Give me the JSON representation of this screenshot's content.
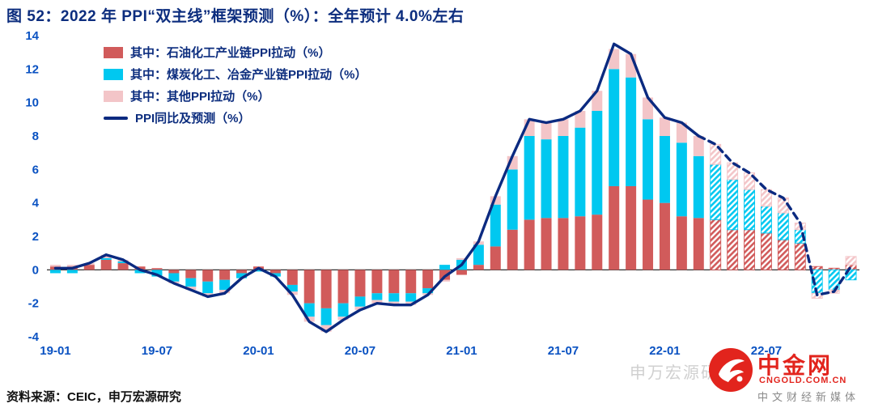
{
  "title": "图 52：2022 年 PPI“双主线”框架预测（%）：全年预计 4.0%左右",
  "source": "资料来源：CEIC，申万宏源研究",
  "watermark": {
    "faint": "申万宏源研究",
    "name": "中金网",
    "url": "CNGOLD.COM.CN",
    "tagline": "中文财经新媒体",
    "logo_color": "#e2241d"
  },
  "colors": {
    "title": "#0c2d7e",
    "axis_labels": "#0a52c2",
    "zero_line": "#1a1a1a",
    "background": "#ffffff"
  },
  "chart_data": {
    "type": "bar",
    "title": "2022 年 PPI“双主线”框架预测（%）：全年预计 4.0%左右",
    "xlabel": "",
    "ylabel": "",
    "ylim": [
      -4,
      14
    ],
    "yticks": [
      -4,
      -2,
      0,
      2,
      4,
      6,
      8,
      10,
      12,
      14
    ],
    "xticks": [
      "19-01",
      "19-07",
      "20-01",
      "20-07",
      "21-01",
      "21-07",
      "22-01",
      "22-07"
    ],
    "grid": false,
    "legend_position": "top-left",
    "x": [
      "19-01",
      "19-02",
      "19-03",
      "19-04",
      "19-05",
      "19-06",
      "19-07",
      "19-08",
      "19-09",
      "19-10",
      "19-11",
      "19-12",
      "20-01",
      "20-02",
      "20-03",
      "20-04",
      "20-05",
      "20-06",
      "20-07",
      "20-08",
      "20-09",
      "20-10",
      "20-11",
      "20-12",
      "21-01",
      "21-02",
      "21-03",
      "21-04",
      "21-05",
      "21-06",
      "21-07",
      "21-08",
      "21-09",
      "21-10",
      "21-11",
      "21-12",
      "22-01",
      "22-02",
      "22-03",
      "22-04",
      "22-05",
      "22-06",
      "22-07",
      "22-08",
      "22-09",
      "22-10",
      "22-11",
      "22-12"
    ],
    "series": [
      {
        "name": "其中：石油化工产业链PPI拉动（%）",
        "color": "#d15b5b",
        "values": [
          0.2,
          0.2,
          0.3,
          0.6,
          0.4,
          0.2,
          0.1,
          -0.2,
          -0.5,
          -0.7,
          -0.6,
          -0.2,
          0.2,
          -0.2,
          -0.9,
          -2.0,
          -2.3,
          -2.0,
          -1.6,
          -1.4,
          -1.4,
          -1.4,
          -1.1,
          -0.6,
          -0.3,
          0.3,
          1.4,
          2.4,
          3.0,
          3.1,
          3.1,
          3.2,
          3.3,
          5.0,
          5.0,
          4.2,
          4.0,
          3.2,
          3.1,
          3.0,
          2.4,
          2.4,
          2.2,
          1.8,
          1.6,
          0.2,
          0.1,
          0.3
        ]
      },
      {
        "name": "其中：煤炭化工、冶金产业链PPI拉动（%）",
        "color": "#00c8f0",
        "values": [
          -0.2,
          -0.2,
          0.0,
          0.1,
          0.1,
          -0.2,
          -0.4,
          -0.5,
          -0.5,
          -0.7,
          -0.6,
          -0.3,
          -0.1,
          -0.2,
          -0.4,
          -0.8,
          -1.0,
          -0.8,
          -0.6,
          -0.4,
          -0.5,
          -0.5,
          -0.3,
          0.3,
          0.6,
          1.2,
          2.5,
          3.6,
          5.0,
          4.7,
          4.9,
          5.3,
          6.2,
          7.0,
          6.5,
          4.8,
          4.0,
          4.4,
          3.7,
          3.3,
          3.0,
          2.4,
          1.6,
          1.6,
          0.8,
          -1.4,
          -1.2,
          -0.6
        ]
      },
      {
        "name": "其中：其他PPI拉动（%）",
        "color": "#f3c5c8",
        "values": [
          0.1,
          0.1,
          0.1,
          0.2,
          0.1,
          0.0,
          0.0,
          -0.1,
          -0.2,
          -0.2,
          -0.2,
          0.0,
          0.0,
          0.0,
          -0.2,
          -0.3,
          -0.4,
          -0.2,
          -0.2,
          -0.2,
          -0.2,
          -0.2,
          -0.1,
          -0.1,
          0.1,
          0.2,
          0.5,
          0.8,
          1.0,
          1.0,
          1.0,
          1.0,
          1.2,
          1.2,
          1.4,
          1.3,
          1.1,
          1.2,
          1.2,
          1.2,
          1.0,
          1.0,
          1.0,
          0.9,
          0.4,
          -0.3,
          -0.2,
          0.5
        ]
      }
    ],
    "line": {
      "name": "PPI同比及预测（%）",
      "color": "#0b2a80",
      "dash_start_index": 38,
      "values": [
        0.1,
        0.1,
        0.4,
        0.9,
        0.6,
        0.0,
        -0.3,
        -0.8,
        -1.2,
        -1.6,
        -1.4,
        -0.5,
        0.1,
        -0.4,
        -1.5,
        -3.1,
        -3.7,
        -3.0,
        -2.4,
        -2.0,
        -2.1,
        -2.1,
        -1.5,
        -0.4,
        0.3,
        1.7,
        4.4,
        6.8,
        9.0,
        8.8,
        9.0,
        9.5,
        10.7,
        13.5,
        12.9,
        10.3,
        9.1,
        8.8,
        8.0,
        7.5,
        6.4,
        5.8,
        4.8,
        4.3,
        2.8,
        -1.5,
        -1.3,
        0.2
      ]
    },
    "forecast_start_index": 39
  }
}
